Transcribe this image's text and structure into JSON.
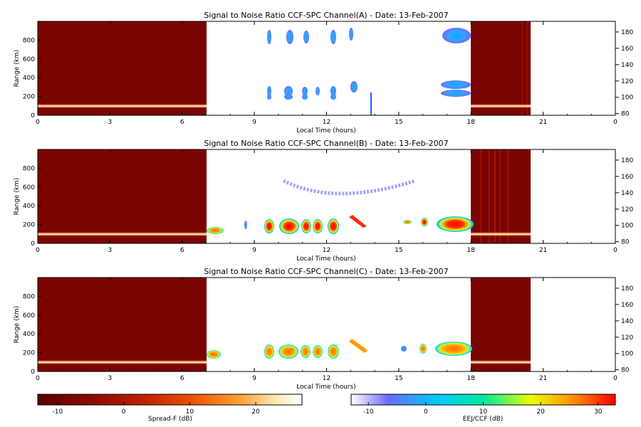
{
  "chart_data": [
    {
      "type": "heatmap",
      "title": "Signal to Noise Ratio CCF-SPC Channel(A) - Date: 13-Feb-2007",
      "xlabel": "Local Time (hours)",
      "ylabel": "Range (km)",
      "xlim": [
        0,
        24
      ],
      "ylim": [
        0,
        1000
      ],
      "x_ticks": [
        "0",
        "3",
        "6",
        "9",
        "12",
        "15",
        "18",
        "21",
        "0"
      ],
      "y_ticks": [
        "0",
        "200",
        "400",
        "600",
        "800"
      ],
      "y2lim": [
        78,
        193
      ],
      "y2_ticks": [
        "80",
        "100",
        "120",
        "140",
        "160",
        "180"
      ],
      "regions": [
        {
          "name": "Spread-F",
          "x": [
            0,
            7
          ],
          "note": "dark red background, bright echo near 100 km"
        },
        {
          "name": "EEJ/CCF",
          "x": [
            7,
            18
          ],
          "note": "white background, sparse echoes"
        },
        {
          "name": "Spread-F",
          "x": [
            18,
            20.5
          ],
          "note": "dark red background, bright echo near 100 km"
        }
      ],
      "echoes": [
        {
          "x0": 9.5,
          "x1": 18,
          "y": 200,
          "level": "low"
        },
        {
          "x0": 9.5,
          "x1": 12.3,
          "y": 770,
          "level": "low"
        },
        {
          "x0": 17,
          "x1": 18,
          "y": 790,
          "level": "medium"
        },
        {
          "x0": 17,
          "x1": 18,
          "y": 250,
          "level": "medium"
        }
      ]
    },
    {
      "type": "heatmap",
      "title": "Signal to Noise Ratio CCF-SPC Channel(B) - Date: 13-Feb-2007",
      "xlabel": "Local Time (hours)",
      "ylabel": "Range (km)",
      "xlim": [
        0,
        24
      ],
      "ylim": [
        0,
        1000
      ],
      "x_ticks": [
        "0",
        "3",
        "6",
        "9",
        "12",
        "15",
        "18",
        "21",
        "0"
      ],
      "y_ticks": [
        "0",
        "200",
        "400",
        "600",
        "800"
      ],
      "y2lim": [
        78,
        193
      ],
      "y2_ticks": [
        "80",
        "100",
        "120",
        "140",
        "160",
        "180"
      ],
      "echoes": [
        {
          "x0": 9.5,
          "x1": 12.5,
          "y": 200,
          "level": "high"
        },
        {
          "x0": 13,
          "x1": 13.5,
          "y": 240,
          "level": "high"
        },
        {
          "x0": 17,
          "x1": 18,
          "y": 220,
          "level": "high"
        },
        {
          "x0": 10.5,
          "x1": 15.5,
          "y": 560,
          "level": "low",
          "shape": "arc"
        }
      ]
    },
    {
      "type": "heatmap",
      "title": "Signal to Noise Ratio CCF-SPC Channel(C) - Date: 13-Feb-2007",
      "xlabel": "Local Time (hours)",
      "ylabel": "Range (km)",
      "xlim": [
        0,
        24
      ],
      "ylim": [
        0,
        1000
      ],
      "x_ticks": [
        "0",
        "3",
        "6",
        "9",
        "12",
        "15",
        "18",
        "21",
        "0"
      ],
      "y_ticks": [
        "0",
        "200",
        "400",
        "600",
        "800"
      ],
      "y2lim": [
        78,
        193
      ],
      "y2_ticks": [
        "80",
        "100",
        "120",
        "140",
        "160",
        "180"
      ],
      "echoes": [
        {
          "x0": 9.5,
          "x1": 12.5,
          "y": 210,
          "level": "medium-high"
        },
        {
          "x0": 13,
          "x1": 13.5,
          "y": 250,
          "level": "medium-high"
        },
        {
          "x0": 17,
          "x1": 18,
          "y": 230,
          "level": "medium-high"
        }
      ]
    }
  ],
  "colorbars": [
    {
      "label": "Spread-F (dB)",
      "range": [
        -13,
        27
      ],
      "ticks": [
        "-10",
        "0",
        "10",
        "20"
      ],
      "colors": [
        "#5a0000",
        "#8b0a00",
        "#c02000",
        "#e85000",
        "#ff9a30",
        "#ffe8b0",
        "#ffffff"
      ]
    },
    {
      "label": "EEJ/CCF (dB)",
      "range": [
        -13,
        33
      ],
      "ticks": [
        "-10",
        "0",
        "10",
        "20",
        "30"
      ],
      "colors": [
        "#ffffff",
        "#6a6aff",
        "#00c8ff",
        "#00e8a0",
        "#e8ff00",
        "#ff9000",
        "#ff0000"
      ]
    }
  ]
}
